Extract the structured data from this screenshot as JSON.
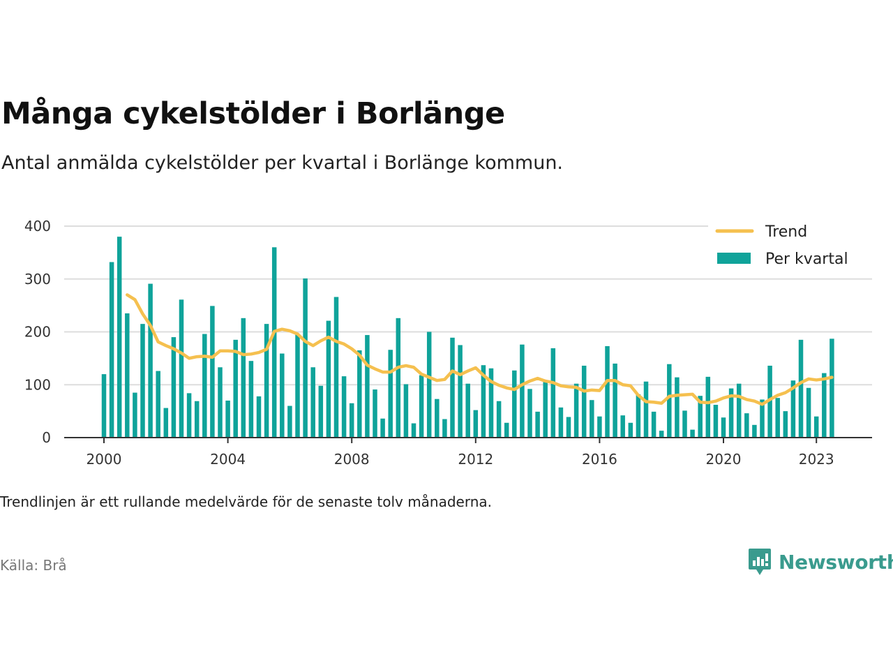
{
  "header": {
    "title": "Många cykelstölder i Borlänge",
    "subtitle": "Antal anmälda cykelstölder per kvartal i Borlänge kommun."
  },
  "footer": {
    "note": "Trendlinjen är ett rullande medelvärde för de senaste tolv månaderna.",
    "source": "Källa: Brå",
    "brand": "Newsworthy"
  },
  "colors": {
    "bars": "#0fa39a",
    "trend": "#f5c04f",
    "grid": "#dddddd",
    "axis": "#333333",
    "brand": "#3a9b8e"
  },
  "chart_data": {
    "type": "bar",
    "x_start": "2000 Q1",
    "ylim": [
      0,
      400
    ],
    "yticks": [
      0,
      100,
      200,
      300,
      400
    ],
    "xticks": [
      {
        "label": "2000",
        "index": 0
      },
      {
        "label": "2004",
        "index": 16
      },
      {
        "label": "2008",
        "index": 32
      },
      {
        "label": "2012",
        "index": 48
      },
      {
        "label": "2016",
        "index": 64
      },
      {
        "label": "2020",
        "index": 80
      },
      {
        "label": "2023",
        "index": 92
      }
    ],
    "legend": {
      "position": "top-right",
      "entries": [
        "Trend",
        "Per kvartal"
      ]
    },
    "series": [
      {
        "name": "Per kvartal",
        "kind": "bar",
        "values": [
          120,
          332,
          380,
          235,
          85,
          215,
          291,
          126,
          56,
          190,
          261,
          84,
          69,
          196,
          249,
          133,
          70,
          185,
          226,
          145,
          78,
          215,
          360,
          159,
          60,
          195,
          301,
          133,
          98,
          221,
          266,
          116,
          65,
          165,
          194,
          91,
          36,
          166,
          226,
          101,
          27,
          118,
          200,
          73,
          35,
          189,
          175,
          102,
          52,
          137,
          131,
          69,
          28,
          127,
          176,
          92,
          49,
          105,
          169,
          57,
          39,
          102,
          136,
          71,
          40,
          173,
          140,
          42,
          28,
          82,
          106,
          49,
          13,
          139,
          114,
          51,
          15,
          79,
          115,
          62,
          38,
          93,
          102,
          46,
          24,
          72,
          136,
          75,
          50,
          108,
          185,
          94,
          40,
          122,
          187
        ]
      },
      {
        "name": "Trend",
        "kind": "line",
        "values": [
          null,
          null,
          null,
          270,
          261,
          234,
          212,
          181,
          174,
          168,
          160,
          150,
          153,
          154,
          152,
          164,
          164,
          163,
          157,
          158,
          161,
          167,
          201,
          205,
          202,
          196,
          182,
          174,
          183,
          190,
          182,
          177,
          168,
          156,
          137,
          130,
          124,
          124,
          133,
          136,
          133,
          120,
          114,
          108,
          110,
          126,
          119,
          126,
          132,
          118,
          106,
          99,
          94,
          91,
          100,
          107,
          112,
          107,
          104,
          98,
          96,
          95,
          88,
          90,
          89,
          108,
          108,
          100,
          98,
          80,
          68,
          67,
          65,
          78,
          80,
          81,
          82,
          67,
          66,
          69,
          75,
          79,
          78,
          72,
          69,
          63,
          72,
          80,
          85,
          94,
          104,
          111,
          109,
          111,
          114
        ]
      }
    ]
  }
}
